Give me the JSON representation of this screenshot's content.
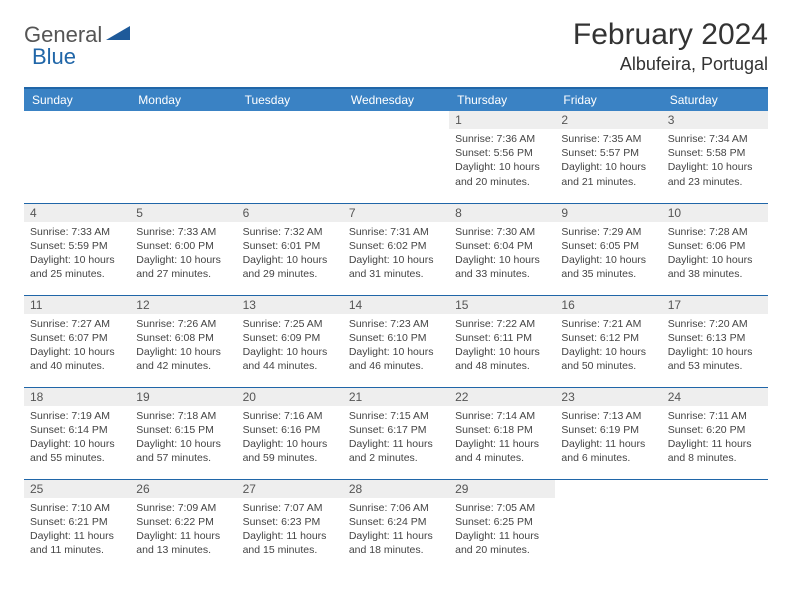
{
  "logo": {
    "text1": "General",
    "text2": "Blue"
  },
  "title": "February 2024",
  "location": "Albufeira, Portugal",
  "weekday_header_bg": "#3a82c4",
  "weekday_header_fg": "#ffffff",
  "daynum_bg": "#eeeeee",
  "row_sep_color": "#2066a8",
  "page_bg": "#ffffff",
  "logo_icon_color": "#1e5a9a",
  "cell_font_size": 10.5,
  "weekdays": [
    "Sunday",
    "Monday",
    "Tuesday",
    "Wednesday",
    "Thursday",
    "Friday",
    "Saturday"
  ],
  "weeks": [
    [
      {
        "day": "",
        "sunrise": "",
        "sunset": "",
        "daylight": ""
      },
      {
        "day": "",
        "sunrise": "",
        "sunset": "",
        "daylight": ""
      },
      {
        "day": "",
        "sunrise": "",
        "sunset": "",
        "daylight": ""
      },
      {
        "day": "",
        "sunrise": "",
        "sunset": "",
        "daylight": ""
      },
      {
        "day": "1",
        "sunrise": "Sunrise: 7:36 AM",
        "sunset": "Sunset: 5:56 PM",
        "daylight": "Daylight: 10 hours and 20 minutes."
      },
      {
        "day": "2",
        "sunrise": "Sunrise: 7:35 AM",
        "sunset": "Sunset: 5:57 PM",
        "daylight": "Daylight: 10 hours and 21 minutes."
      },
      {
        "day": "3",
        "sunrise": "Sunrise: 7:34 AM",
        "sunset": "Sunset: 5:58 PM",
        "daylight": "Daylight: 10 hours and 23 minutes."
      }
    ],
    [
      {
        "day": "4",
        "sunrise": "Sunrise: 7:33 AM",
        "sunset": "Sunset: 5:59 PM",
        "daylight": "Daylight: 10 hours and 25 minutes."
      },
      {
        "day": "5",
        "sunrise": "Sunrise: 7:33 AM",
        "sunset": "Sunset: 6:00 PM",
        "daylight": "Daylight: 10 hours and 27 minutes."
      },
      {
        "day": "6",
        "sunrise": "Sunrise: 7:32 AM",
        "sunset": "Sunset: 6:01 PM",
        "daylight": "Daylight: 10 hours and 29 minutes."
      },
      {
        "day": "7",
        "sunrise": "Sunrise: 7:31 AM",
        "sunset": "Sunset: 6:02 PM",
        "daylight": "Daylight: 10 hours and 31 minutes."
      },
      {
        "day": "8",
        "sunrise": "Sunrise: 7:30 AM",
        "sunset": "Sunset: 6:04 PM",
        "daylight": "Daylight: 10 hours and 33 minutes."
      },
      {
        "day": "9",
        "sunrise": "Sunrise: 7:29 AM",
        "sunset": "Sunset: 6:05 PM",
        "daylight": "Daylight: 10 hours and 35 minutes."
      },
      {
        "day": "10",
        "sunrise": "Sunrise: 7:28 AM",
        "sunset": "Sunset: 6:06 PM",
        "daylight": "Daylight: 10 hours and 38 minutes."
      }
    ],
    [
      {
        "day": "11",
        "sunrise": "Sunrise: 7:27 AM",
        "sunset": "Sunset: 6:07 PM",
        "daylight": "Daylight: 10 hours and 40 minutes."
      },
      {
        "day": "12",
        "sunrise": "Sunrise: 7:26 AM",
        "sunset": "Sunset: 6:08 PM",
        "daylight": "Daylight: 10 hours and 42 minutes."
      },
      {
        "day": "13",
        "sunrise": "Sunrise: 7:25 AM",
        "sunset": "Sunset: 6:09 PM",
        "daylight": "Daylight: 10 hours and 44 minutes."
      },
      {
        "day": "14",
        "sunrise": "Sunrise: 7:23 AM",
        "sunset": "Sunset: 6:10 PM",
        "daylight": "Daylight: 10 hours and 46 minutes."
      },
      {
        "day": "15",
        "sunrise": "Sunrise: 7:22 AM",
        "sunset": "Sunset: 6:11 PM",
        "daylight": "Daylight: 10 hours and 48 minutes."
      },
      {
        "day": "16",
        "sunrise": "Sunrise: 7:21 AM",
        "sunset": "Sunset: 6:12 PM",
        "daylight": "Daylight: 10 hours and 50 minutes."
      },
      {
        "day": "17",
        "sunrise": "Sunrise: 7:20 AM",
        "sunset": "Sunset: 6:13 PM",
        "daylight": "Daylight: 10 hours and 53 minutes."
      }
    ],
    [
      {
        "day": "18",
        "sunrise": "Sunrise: 7:19 AM",
        "sunset": "Sunset: 6:14 PM",
        "daylight": "Daylight: 10 hours and 55 minutes."
      },
      {
        "day": "19",
        "sunrise": "Sunrise: 7:18 AM",
        "sunset": "Sunset: 6:15 PM",
        "daylight": "Daylight: 10 hours and 57 minutes."
      },
      {
        "day": "20",
        "sunrise": "Sunrise: 7:16 AM",
        "sunset": "Sunset: 6:16 PM",
        "daylight": "Daylight: 10 hours and 59 minutes."
      },
      {
        "day": "21",
        "sunrise": "Sunrise: 7:15 AM",
        "sunset": "Sunset: 6:17 PM",
        "daylight": "Daylight: 11 hours and 2 minutes."
      },
      {
        "day": "22",
        "sunrise": "Sunrise: 7:14 AM",
        "sunset": "Sunset: 6:18 PM",
        "daylight": "Daylight: 11 hours and 4 minutes."
      },
      {
        "day": "23",
        "sunrise": "Sunrise: 7:13 AM",
        "sunset": "Sunset: 6:19 PM",
        "daylight": "Daylight: 11 hours and 6 minutes."
      },
      {
        "day": "24",
        "sunrise": "Sunrise: 7:11 AM",
        "sunset": "Sunset: 6:20 PM",
        "daylight": "Daylight: 11 hours and 8 minutes."
      }
    ],
    [
      {
        "day": "25",
        "sunrise": "Sunrise: 7:10 AM",
        "sunset": "Sunset: 6:21 PM",
        "daylight": "Daylight: 11 hours and 11 minutes."
      },
      {
        "day": "26",
        "sunrise": "Sunrise: 7:09 AM",
        "sunset": "Sunset: 6:22 PM",
        "daylight": "Daylight: 11 hours and 13 minutes."
      },
      {
        "day": "27",
        "sunrise": "Sunrise: 7:07 AM",
        "sunset": "Sunset: 6:23 PM",
        "daylight": "Daylight: 11 hours and 15 minutes."
      },
      {
        "day": "28",
        "sunrise": "Sunrise: 7:06 AM",
        "sunset": "Sunset: 6:24 PM",
        "daylight": "Daylight: 11 hours and 18 minutes."
      },
      {
        "day": "29",
        "sunrise": "Sunrise: 7:05 AM",
        "sunset": "Sunset: 6:25 PM",
        "daylight": "Daylight: 11 hours and 20 minutes."
      },
      {
        "day": "",
        "sunrise": "",
        "sunset": "",
        "daylight": ""
      },
      {
        "day": "",
        "sunrise": "",
        "sunset": "",
        "daylight": ""
      }
    ]
  ]
}
